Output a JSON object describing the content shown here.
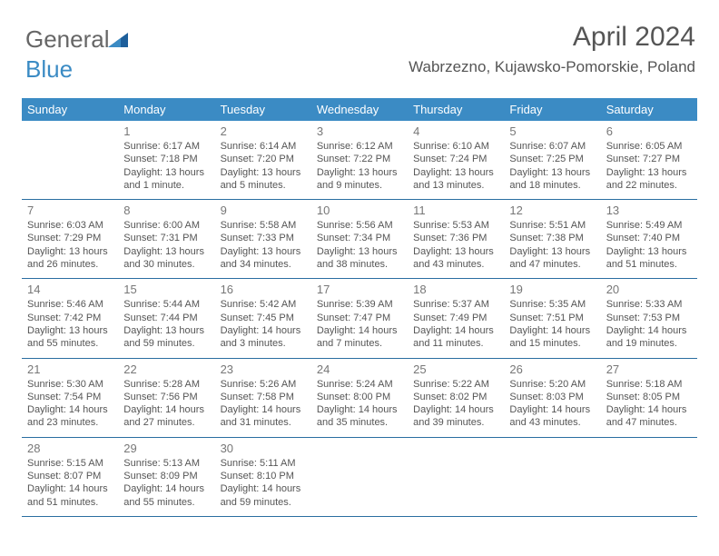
{
  "logo": {
    "part1": "General",
    "part2": "Blue"
  },
  "title": "April 2024",
  "location": "Wabrzezno, Kujawsko-Pomorskie, Poland",
  "colors": {
    "header_bg": "#3b8bc4",
    "header_text": "#ffffff",
    "border": "#2a6ea1",
    "body_text": "#555555",
    "daynum": "#777777",
    "bg": "#ffffff"
  },
  "day_names": [
    "Sunday",
    "Monday",
    "Tuesday",
    "Wednesday",
    "Thursday",
    "Friday",
    "Saturday"
  ],
  "weeks": [
    [
      {
        "n": "",
        "sr": "",
        "ss": "",
        "d1": "",
        "d2": ""
      },
      {
        "n": "1",
        "sr": "Sunrise: 6:17 AM",
        "ss": "Sunset: 7:18 PM",
        "d1": "Daylight: 13 hours",
        "d2": "and 1 minute."
      },
      {
        "n": "2",
        "sr": "Sunrise: 6:14 AM",
        "ss": "Sunset: 7:20 PM",
        "d1": "Daylight: 13 hours",
        "d2": "and 5 minutes."
      },
      {
        "n": "3",
        "sr": "Sunrise: 6:12 AM",
        "ss": "Sunset: 7:22 PM",
        "d1": "Daylight: 13 hours",
        "d2": "and 9 minutes."
      },
      {
        "n": "4",
        "sr": "Sunrise: 6:10 AM",
        "ss": "Sunset: 7:24 PM",
        "d1": "Daylight: 13 hours",
        "d2": "and 13 minutes."
      },
      {
        "n": "5",
        "sr": "Sunrise: 6:07 AM",
        "ss": "Sunset: 7:25 PM",
        "d1": "Daylight: 13 hours",
        "d2": "and 18 minutes."
      },
      {
        "n": "6",
        "sr": "Sunrise: 6:05 AM",
        "ss": "Sunset: 7:27 PM",
        "d1": "Daylight: 13 hours",
        "d2": "and 22 minutes."
      }
    ],
    [
      {
        "n": "7",
        "sr": "Sunrise: 6:03 AM",
        "ss": "Sunset: 7:29 PM",
        "d1": "Daylight: 13 hours",
        "d2": "and 26 minutes."
      },
      {
        "n": "8",
        "sr": "Sunrise: 6:00 AM",
        "ss": "Sunset: 7:31 PM",
        "d1": "Daylight: 13 hours",
        "d2": "and 30 minutes."
      },
      {
        "n": "9",
        "sr": "Sunrise: 5:58 AM",
        "ss": "Sunset: 7:33 PM",
        "d1": "Daylight: 13 hours",
        "d2": "and 34 minutes."
      },
      {
        "n": "10",
        "sr": "Sunrise: 5:56 AM",
        "ss": "Sunset: 7:34 PM",
        "d1": "Daylight: 13 hours",
        "d2": "and 38 minutes."
      },
      {
        "n": "11",
        "sr": "Sunrise: 5:53 AM",
        "ss": "Sunset: 7:36 PM",
        "d1": "Daylight: 13 hours",
        "d2": "and 43 minutes."
      },
      {
        "n": "12",
        "sr": "Sunrise: 5:51 AM",
        "ss": "Sunset: 7:38 PM",
        "d1": "Daylight: 13 hours",
        "d2": "and 47 minutes."
      },
      {
        "n": "13",
        "sr": "Sunrise: 5:49 AM",
        "ss": "Sunset: 7:40 PM",
        "d1": "Daylight: 13 hours",
        "d2": "and 51 minutes."
      }
    ],
    [
      {
        "n": "14",
        "sr": "Sunrise: 5:46 AM",
        "ss": "Sunset: 7:42 PM",
        "d1": "Daylight: 13 hours",
        "d2": "and 55 minutes."
      },
      {
        "n": "15",
        "sr": "Sunrise: 5:44 AM",
        "ss": "Sunset: 7:44 PM",
        "d1": "Daylight: 13 hours",
        "d2": "and 59 minutes."
      },
      {
        "n": "16",
        "sr": "Sunrise: 5:42 AM",
        "ss": "Sunset: 7:45 PM",
        "d1": "Daylight: 14 hours",
        "d2": "and 3 minutes."
      },
      {
        "n": "17",
        "sr": "Sunrise: 5:39 AM",
        "ss": "Sunset: 7:47 PM",
        "d1": "Daylight: 14 hours",
        "d2": "and 7 minutes."
      },
      {
        "n": "18",
        "sr": "Sunrise: 5:37 AM",
        "ss": "Sunset: 7:49 PM",
        "d1": "Daylight: 14 hours",
        "d2": "and 11 minutes."
      },
      {
        "n": "19",
        "sr": "Sunrise: 5:35 AM",
        "ss": "Sunset: 7:51 PM",
        "d1": "Daylight: 14 hours",
        "d2": "and 15 minutes."
      },
      {
        "n": "20",
        "sr": "Sunrise: 5:33 AM",
        "ss": "Sunset: 7:53 PM",
        "d1": "Daylight: 14 hours",
        "d2": "and 19 minutes."
      }
    ],
    [
      {
        "n": "21",
        "sr": "Sunrise: 5:30 AM",
        "ss": "Sunset: 7:54 PM",
        "d1": "Daylight: 14 hours",
        "d2": "and 23 minutes."
      },
      {
        "n": "22",
        "sr": "Sunrise: 5:28 AM",
        "ss": "Sunset: 7:56 PM",
        "d1": "Daylight: 14 hours",
        "d2": "and 27 minutes."
      },
      {
        "n": "23",
        "sr": "Sunrise: 5:26 AM",
        "ss": "Sunset: 7:58 PM",
        "d1": "Daylight: 14 hours",
        "d2": "and 31 minutes."
      },
      {
        "n": "24",
        "sr": "Sunrise: 5:24 AM",
        "ss": "Sunset: 8:00 PM",
        "d1": "Daylight: 14 hours",
        "d2": "and 35 minutes."
      },
      {
        "n": "25",
        "sr": "Sunrise: 5:22 AM",
        "ss": "Sunset: 8:02 PM",
        "d1": "Daylight: 14 hours",
        "d2": "and 39 minutes."
      },
      {
        "n": "26",
        "sr": "Sunrise: 5:20 AM",
        "ss": "Sunset: 8:03 PM",
        "d1": "Daylight: 14 hours",
        "d2": "and 43 minutes."
      },
      {
        "n": "27",
        "sr": "Sunrise: 5:18 AM",
        "ss": "Sunset: 8:05 PM",
        "d1": "Daylight: 14 hours",
        "d2": "and 47 minutes."
      }
    ],
    [
      {
        "n": "28",
        "sr": "Sunrise: 5:15 AM",
        "ss": "Sunset: 8:07 PM",
        "d1": "Daylight: 14 hours",
        "d2": "and 51 minutes."
      },
      {
        "n": "29",
        "sr": "Sunrise: 5:13 AM",
        "ss": "Sunset: 8:09 PM",
        "d1": "Daylight: 14 hours",
        "d2": "and 55 minutes."
      },
      {
        "n": "30",
        "sr": "Sunrise: 5:11 AM",
        "ss": "Sunset: 8:10 PM",
        "d1": "Daylight: 14 hours",
        "d2": "and 59 minutes."
      },
      {
        "n": "",
        "sr": "",
        "ss": "",
        "d1": "",
        "d2": ""
      },
      {
        "n": "",
        "sr": "",
        "ss": "",
        "d1": "",
        "d2": ""
      },
      {
        "n": "",
        "sr": "",
        "ss": "",
        "d1": "",
        "d2": ""
      },
      {
        "n": "",
        "sr": "",
        "ss": "",
        "d1": "",
        "d2": ""
      }
    ]
  ]
}
